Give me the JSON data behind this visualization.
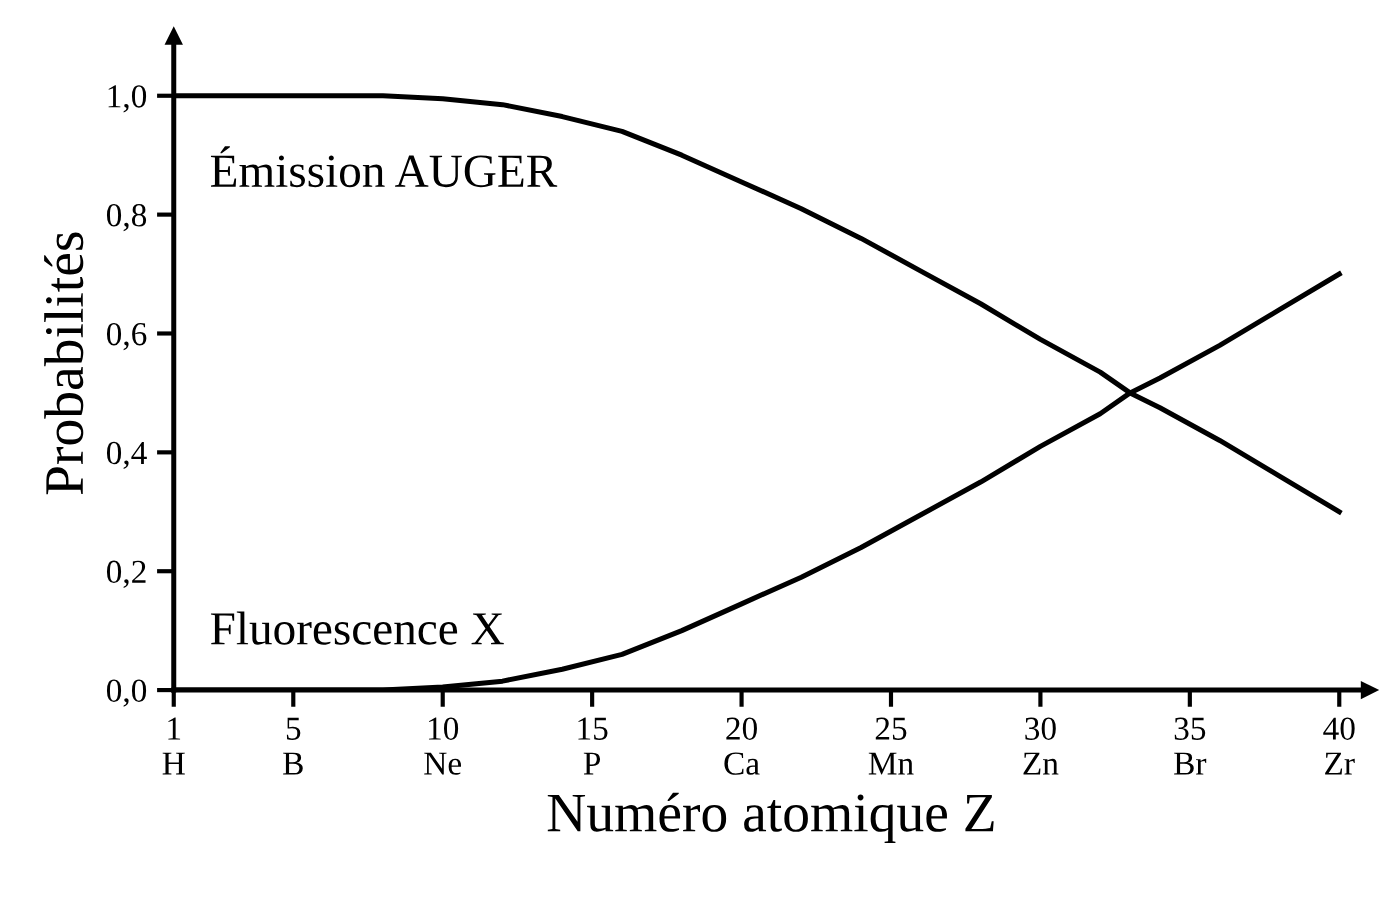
{
  "chart_data": {
    "type": "line",
    "xlabel": "Numéro atomique Z",
    "ylabel": "Probabilités",
    "xlim": [
      1,
      41
    ],
    "ylim": [
      0,
      1.1
    ],
    "xticks": [
      {
        "value": 1,
        "label": "1\nH"
      },
      {
        "value": 5,
        "label": "5\nB"
      },
      {
        "value": 10,
        "label": "10\nNe"
      },
      {
        "value": 15,
        "label": "15\nP"
      },
      {
        "value": 20,
        "label": "20\nCa"
      },
      {
        "value": 25,
        "label": "25\nMn"
      },
      {
        "value": 30,
        "label": "30\nZn"
      },
      {
        "value": 35,
        "label": "35\nBr"
      },
      {
        "value": 40,
        "label": "40\nZr"
      }
    ],
    "yticks": [
      {
        "value": 0,
        "label": "0,0"
      },
      {
        "value": 0.2,
        "label": "0,2"
      },
      {
        "value": 0.4,
        "label": "0,4"
      },
      {
        "value": 0.6,
        "label": "0,6"
      },
      {
        "value": 0.8,
        "label": "0,8"
      },
      {
        "value": 1.0,
        "label": "1,0"
      }
    ],
    "grid": false,
    "legend": false,
    "marker": "none",
    "line_style": "solid",
    "x": [
      1,
      5,
      8,
      10,
      12,
      14,
      16,
      18,
      20,
      22,
      24,
      26,
      28,
      30,
      32,
      33,
      34,
      36,
      38,
      40
    ],
    "series": [
      {
        "name": "Émission AUGER",
        "color": "#000000",
        "values": [
          1.0,
          1.0,
          1.0,
          0.995,
          0.985,
          0.965,
          0.94,
          0.9,
          0.855,
          0.81,
          0.76,
          0.705,
          0.65,
          0.59,
          0.535,
          0.5,
          0.475,
          0.42,
          0.36,
          0.3
        ]
      },
      {
        "name": "Fluorescence X",
        "color": "#000000",
        "values": [
          0.0,
          0.0,
          0.0,
          0.005,
          0.015,
          0.035,
          0.06,
          0.1,
          0.145,
          0.19,
          0.24,
          0.295,
          0.35,
          0.41,
          0.465,
          0.5,
          0.525,
          0.58,
          0.64,
          0.7
        ]
      }
    ]
  }
}
